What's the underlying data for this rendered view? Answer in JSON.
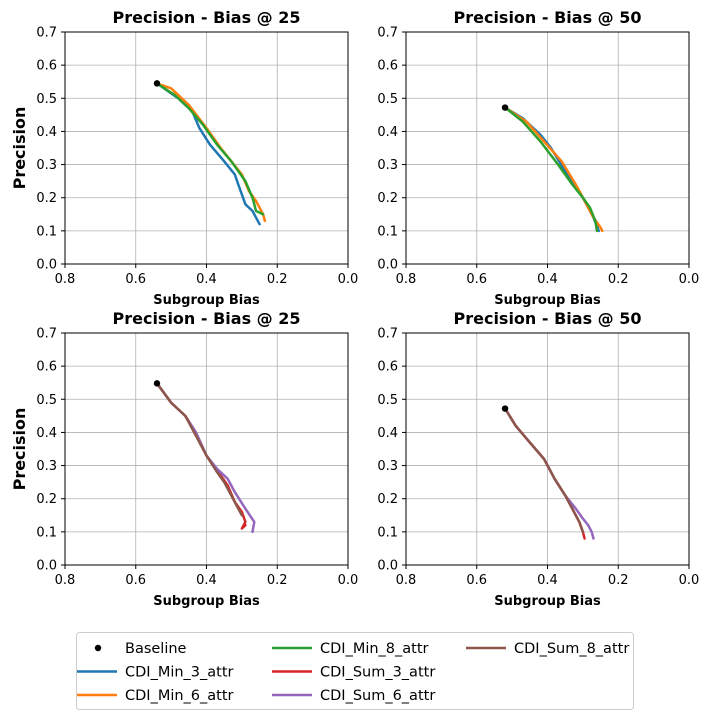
{
  "chart_data": [
    {
      "type": "line",
      "title": "Precision - Bias @ 25",
      "xlabel": "Subgroup Bias",
      "ylabel": "Precision",
      "xlim": [
        0.8,
        0.0
      ],
      "ylim": [
        0.0,
        0.7
      ],
      "xticks": [
        "0.8",
        "0.6",
        "0.4",
        "0.2",
        "0.0"
      ],
      "yticks": [
        "0.0",
        "0.1",
        "0.2",
        "0.3",
        "0.4",
        "0.5",
        "0.6",
        "0.7"
      ],
      "grid": true,
      "baseline": {
        "name": "Baseline",
        "x": 0.54,
        "y": 0.545
      },
      "series": [
        {
          "name": "CDI_Min_3_attr",
          "color": "#1f77b4",
          "x": [
            0.54,
            0.48,
            0.44,
            0.42,
            0.39,
            0.35,
            0.32,
            0.31,
            0.29,
            0.27,
            0.26,
            0.25
          ],
          "y": [
            0.545,
            0.5,
            0.46,
            0.41,
            0.36,
            0.31,
            0.27,
            0.24,
            0.18,
            0.16,
            0.14,
            0.12
          ]
        },
        {
          "name": "CDI_Min_6_attr",
          "color": "#ff7f0e",
          "x": [
            0.54,
            0.5,
            0.45,
            0.4,
            0.36,
            0.33,
            0.3,
            0.28,
            0.26,
            0.25,
            0.24,
            0.235
          ],
          "y": [
            0.545,
            0.53,
            0.48,
            0.41,
            0.35,
            0.31,
            0.27,
            0.22,
            0.19,
            0.17,
            0.15,
            0.13
          ]
        },
        {
          "name": "CDI_Min_8_attr",
          "color": "#2ca02c",
          "x": [
            0.54,
            0.49,
            0.45,
            0.41,
            0.37,
            0.33,
            0.31,
            0.29,
            0.27,
            0.265,
            0.26,
            0.24
          ],
          "y": [
            0.545,
            0.51,
            0.47,
            0.42,
            0.36,
            0.31,
            0.28,
            0.25,
            0.2,
            0.18,
            0.16,
            0.15
          ]
        }
      ]
    },
    {
      "type": "line",
      "title": "Precision - Bias @ 50",
      "xlabel": "Subgroup Bias",
      "ylabel": "",
      "xlim": [
        0.8,
        0.0
      ],
      "ylim": [
        0.0,
        0.7
      ],
      "xticks": [
        "0.8",
        "0.6",
        "0.4",
        "0.2",
        "0.0"
      ],
      "yticks": [
        "0.0",
        "0.1",
        "0.2",
        "0.3",
        "0.4",
        "0.5",
        "0.6",
        "0.7"
      ],
      "grid": true,
      "baseline": {
        "name": "Baseline",
        "x": 0.52,
        "y": 0.472
      },
      "series": [
        {
          "name": "CDI_Min_3_attr",
          "color": "#1f77b4",
          "x": [
            0.52,
            0.47,
            0.42,
            0.39,
            0.35,
            0.31,
            0.29,
            0.27,
            0.255
          ],
          "y": [
            0.472,
            0.44,
            0.39,
            0.35,
            0.28,
            0.22,
            0.18,
            0.14,
            0.1
          ]
        },
        {
          "name": "CDI_Min_6_attr",
          "color": "#ff7f0e",
          "x": [
            0.52,
            0.46,
            0.41,
            0.36,
            0.32,
            0.3,
            0.29,
            0.27,
            0.25,
            0.245
          ],
          "y": [
            0.472,
            0.43,
            0.37,
            0.31,
            0.24,
            0.2,
            0.18,
            0.14,
            0.11,
            0.1
          ]
        },
        {
          "name": "CDI_Min_8_attr",
          "color": "#2ca02c",
          "x": [
            0.52,
            0.47,
            0.42,
            0.37,
            0.33,
            0.3,
            0.28,
            0.265,
            0.26
          ],
          "y": [
            0.472,
            0.43,
            0.37,
            0.3,
            0.24,
            0.2,
            0.17,
            0.13,
            0.1
          ]
        }
      ]
    },
    {
      "type": "line",
      "title": "Precision - Bias @ 25",
      "xlabel": "Subgroup Bias",
      "ylabel": "Precision",
      "xlim": [
        0.8,
        0.0
      ],
      "ylim": [
        0.0,
        0.7
      ],
      "xticks": [
        "0.8",
        "0.6",
        "0.4",
        "0.2",
        "0.0"
      ],
      "yticks": [
        "0.0",
        "0.1",
        "0.2",
        "0.3",
        "0.4",
        "0.5",
        "0.6",
        "0.7"
      ],
      "grid": true,
      "baseline": {
        "name": "Baseline",
        "x": 0.54,
        "y": 0.548
      },
      "series": [
        {
          "name": "CDI_Sum_3_attr",
          "color": "#d62728",
          "x": [
            0.54,
            0.5,
            0.46,
            0.43,
            0.4,
            0.36,
            0.34,
            0.32,
            0.3,
            0.29,
            0.3,
            0.29
          ],
          "y": [
            0.548,
            0.49,
            0.45,
            0.4,
            0.33,
            0.27,
            0.24,
            0.19,
            0.16,
            0.13,
            0.11,
            0.12
          ]
        },
        {
          "name": "CDI_Sum_6_attr",
          "color": "#9467bd",
          "x": [
            0.54,
            0.5,
            0.46,
            0.43,
            0.4,
            0.37,
            0.34,
            0.32,
            0.29,
            0.265,
            0.27
          ],
          "y": [
            0.548,
            0.49,
            0.45,
            0.4,
            0.33,
            0.29,
            0.26,
            0.22,
            0.17,
            0.13,
            0.1
          ]
        },
        {
          "name": "CDI_Sum_8_attr",
          "color": "#8c564b",
          "x": [
            0.54,
            0.5,
            0.46,
            0.43,
            0.4,
            0.37,
            0.35,
            0.33,
            0.31,
            0.3
          ],
          "y": [
            0.548,
            0.49,
            0.45,
            0.39,
            0.33,
            0.28,
            0.25,
            0.21,
            0.17,
            0.15
          ]
        }
      ]
    },
    {
      "type": "line",
      "title": "Precision - Bias @ 50",
      "xlabel": "Subgroup Bias",
      "ylabel": "",
      "xlim": [
        0.8,
        0.0
      ],
      "ylim": [
        0.0,
        0.7
      ],
      "xticks": [
        "0.8",
        "0.6",
        "0.4",
        "0.2",
        "0.0"
      ],
      "yticks": [
        "0.0",
        "0.1",
        "0.2",
        "0.3",
        "0.4",
        "0.5",
        "0.6",
        "0.7"
      ],
      "grid": true,
      "baseline": {
        "name": "Baseline",
        "x": 0.52,
        "y": 0.472
      },
      "series": [
        {
          "name": "CDI_Sum_3_attr",
          "color": "#d62728",
          "x": [
            0.52,
            0.49,
            0.45,
            0.41,
            0.38,
            0.35,
            0.33,
            0.31,
            0.3,
            0.295
          ],
          "y": [
            0.472,
            0.42,
            0.37,
            0.32,
            0.26,
            0.21,
            0.17,
            0.13,
            0.1,
            0.08
          ]
        },
        {
          "name": "CDI_Sum_6_attr",
          "color": "#9467bd",
          "x": [
            0.52,
            0.49,
            0.45,
            0.41,
            0.38,
            0.35,
            0.32,
            0.3,
            0.285,
            0.275,
            0.27
          ],
          "y": [
            0.472,
            0.42,
            0.37,
            0.32,
            0.26,
            0.21,
            0.17,
            0.14,
            0.12,
            0.1,
            0.08
          ]
        },
        {
          "name": "CDI_Sum_8_attr",
          "color": "#8c564b",
          "x": [
            0.52,
            0.49,
            0.45,
            0.41,
            0.38,
            0.35,
            0.33,
            0.31,
            0.3
          ],
          "y": [
            0.472,
            0.42,
            0.37,
            0.32,
            0.26,
            0.21,
            0.17,
            0.13,
            0.1
          ]
        }
      ]
    }
  ],
  "legend": {
    "location": "bottom-center",
    "entries": [
      {
        "name": "Baseline",
        "kind": "marker",
        "color": "#000000"
      },
      {
        "name": "CDI_Min_3_attr",
        "kind": "line",
        "color": "#1f77b4"
      },
      {
        "name": "CDI_Min_6_attr",
        "kind": "line",
        "color": "#ff7f0e"
      },
      {
        "name": "CDI_Min_8_attr",
        "kind": "line",
        "color": "#2ca02c"
      },
      {
        "name": "CDI_Sum_3_attr",
        "kind": "line",
        "color": "#d62728"
      },
      {
        "name": "CDI_Sum_6_attr",
        "kind": "line",
        "color": "#9467bd"
      },
      {
        "name": "CDI_Sum_8_attr",
        "kind": "line",
        "color": "#8c564b"
      }
    ]
  }
}
